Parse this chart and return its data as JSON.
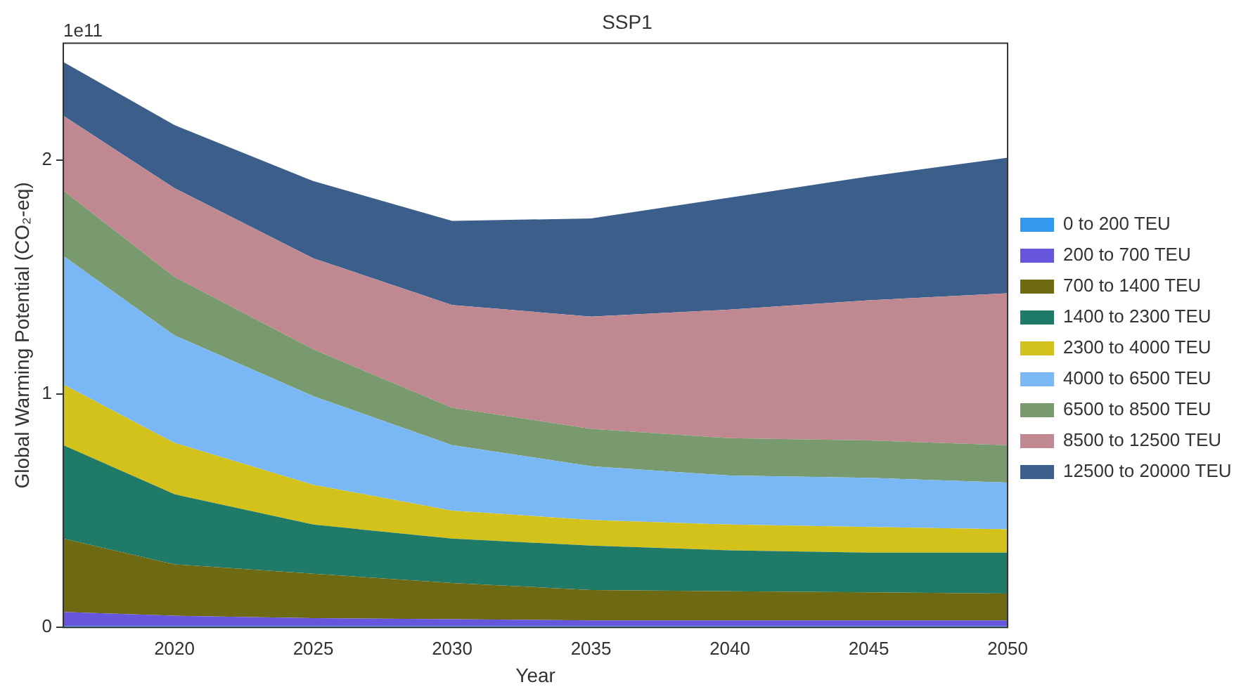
{
  "chart_data": {
    "type": "area",
    "stacked": true,
    "title": "SSP1",
    "xlabel": "Year",
    "ylabel": "Global Warming Potential (CO₂-eq)",
    "annotations": [
      "1e11"
    ],
    "x": [
      2016,
      2020,
      2025,
      2030,
      2035,
      2040,
      2045,
      2050
    ],
    "xlim": [
      2016,
      2050
    ],
    "xticks": [
      2020,
      2025,
      2030,
      2035,
      2040,
      2045,
      2050
    ],
    "ylim": [
      0,
      2.5
    ],
    "yticks": [
      0,
      1,
      2
    ],
    "grid": false,
    "legend": "right",
    "marker": "none",
    "series": [
      {
        "name": "0 to 200 TEU",
        "color": "#3399ee",
        "values": [
          0.005,
          0.005,
          0.005,
          0.005,
          0.005,
          0.005,
          0.005,
          0.005
        ]
      },
      {
        "name": "200 to 700 TEU",
        "color": "#6655dd",
        "values": [
          0.061,
          0.045,
          0.035,
          0.03,
          0.025,
          0.025,
          0.025,
          0.025
        ]
      },
      {
        "name": "700 to 1400 TEU",
        "color": "#6e6a14",
        "values": [
          0.314,
          0.22,
          0.19,
          0.155,
          0.13,
          0.125,
          0.12,
          0.115
        ]
      },
      {
        "name": "1400 to 2300 TEU",
        "color": "#1f7a68",
        "values": [
          0.4,
          0.3,
          0.21,
          0.19,
          0.19,
          0.175,
          0.17,
          0.175
        ]
      },
      {
        "name": "2300 to 4000 TEU",
        "color": "#d4c21c",
        "values": [
          0.26,
          0.22,
          0.17,
          0.12,
          0.11,
          0.11,
          0.11,
          0.1
        ]
      },
      {
        "name": "4000 to 6500 TEU",
        "color": "#7ab8f5",
        "values": [
          0.55,
          0.46,
          0.38,
          0.28,
          0.23,
          0.21,
          0.21,
          0.2
        ]
      },
      {
        "name": "6500 to 8500 TEU",
        "color": "#789a6e",
        "values": [
          0.28,
          0.25,
          0.2,
          0.16,
          0.16,
          0.16,
          0.16,
          0.16
        ]
      },
      {
        "name": "8500 to 12500 TEU",
        "color": "#c08890",
        "values": [
          0.32,
          0.38,
          0.39,
          0.44,
          0.48,
          0.55,
          0.6,
          0.65
        ]
      },
      {
        "name": "12500 to 20000 TEU",
        "color": "#3b5f8a",
        "values": [
          0.23,
          0.27,
          0.33,
          0.36,
          0.42,
          0.48,
          0.53,
          0.58
        ]
      }
    ]
  }
}
